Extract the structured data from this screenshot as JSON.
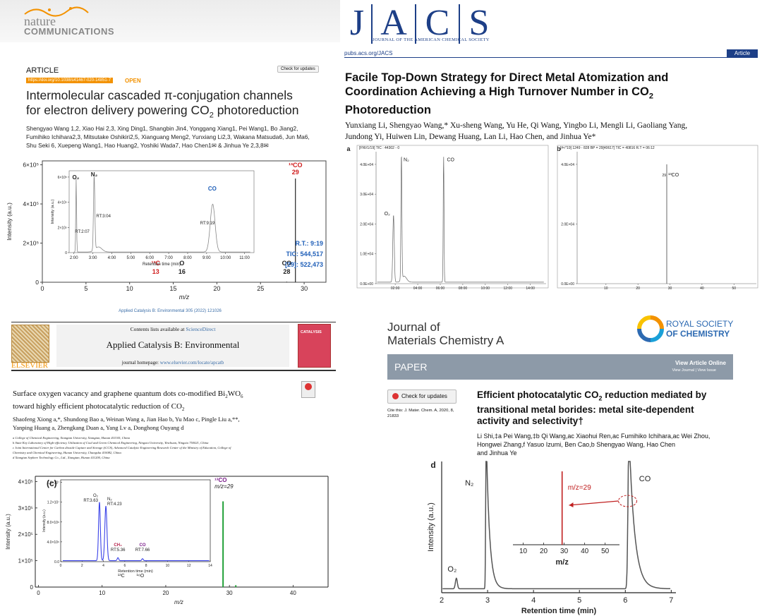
{
  "nc": {
    "logo_top": "nature",
    "logo_bottom": "COMMUNICATIONS",
    "section": "ARTICLE",
    "doi": "https://doi.org/10.1038/s41467-020-14851-7",
    "open": "OPEN",
    "check_updates": "Check for updates",
    "title_line1": "Intermolecular cascaded π-conjugation channels",
    "title_line2": "for electron delivery powering CO",
    "title_sub": "2",
    "title_end": " photoreduction",
    "authors_line1": "Shengyao Wang 1,2, Xiao Hai 2,3, Xing Ding1, Shangbin Jin4, Yonggang Xiang1, Pei Wang1, Bo Jiang2,",
    "authors_line2": "Fumihiko Ichihara2,3, Mitsutake Oshikiri2,5, Xianguang Meng2, Yunxiang Li2,3, Wakana Matsuda6, Jun Ma6,",
    "authors_line3": "Shu Seki 6, Xuepeng Wang1, Hao Huang2, Yoshiki Wada7, Hao Chen1✉ & Jinhua Ye 2,3,8✉",
    "chart": {
      "y_ticks": [
        "6×10⁵",
        "4×10⁵",
        "2×10⁵",
        "0"
      ],
      "x_ticks": [
        "0",
        "5",
        "10",
        "15",
        "20",
        "25",
        "30"
      ],
      "ylabel": "Intensity (a.u.)",
      "xlabel": "m/z",
      "peak_13co": "¹³CO",
      "peak_13co_mz": "29",
      "peak_co": "CO",
      "peak_co_mz": "28",
      "peak_13c": "¹³C",
      "peak_13c_mz": "13",
      "peak_o": "O",
      "peak_o_mz": "16",
      "rt": "R.T.: 9:19",
      "tic": "TIC: 544,517",
      "ion": "[29]: 522,473",
      "inset_y_ticks": [
        "6×10⁵",
        "4×10⁵",
        "2×10⁵",
        "0"
      ],
      "inset_x_ticks": [
        "2:00",
        "3:00",
        "4:00",
        "5:00",
        "6:00",
        "7:00",
        "8:00",
        "9:00",
        "10:00",
        "11:00"
      ],
      "inset_ylabel": "Intensity (a.u.)",
      "inset_xlabel": "Retention time (min)",
      "o2": "O₂",
      "n2": "N₂",
      "co": "CO",
      "rt_o2": "RT:2:07",
      "rt_n2": "RT:3:04",
      "rt_co": "RT:9:19"
    }
  },
  "jacs": {
    "logo": [
      "J",
      "A",
      "C",
      "S"
    ],
    "logo_sub": "JOURNAL OF THE AMERICAN CHEMICAL SOCIETY",
    "url": "pubs.acs.org/JACS",
    "type": "Article",
    "title_line1": "Facile Top-Down Strategy for Direct Metal Atomization and",
    "title_line2": "Coordination Achieving a High Turnover Number in CO",
    "title_sub": "2",
    "title_line3": "Photoreduction",
    "authors_line1": "Yunxiang Li, Shengyao Wang,* Xu-sheng Wang, Yu He, Qi Wang, Yingbo Li, Mengli Li, Gaoliang Yang,",
    "authors_line2": "Jundong Yi, Huiwen Lin, Dewang Huang, Lan Li, Hao Chen, and Jinhua Ye*",
    "panel_a": "a",
    "panel_b": "b",
    "a_header": "[FNV1/19] TIC : 44302 - 0",
    "a_y_ticks": [
      "4.0E+04",
      "3.0E+04",
      "2.0E+04",
      "1.0E+04",
      "0.0E+00"
    ],
    "a_x_ticks": [
      "02:00",
      "04:00",
      "06:00",
      "08:00",
      "10:00",
      "12:00",
      "14:00"
    ],
    "a_o2": "O₂",
    "a_n2": "N₂",
    "a_co": "CO",
    "b_header": "[#<*19] 1249 - 828 BP = 29[40617] TIC = 40816 R.T = 06:12",
    "b_y_ticks": [
      "4.0E+04",
      "2.0E+04",
      "0.0E+00"
    ],
    "b_x_ticks": [
      "10",
      "20",
      "30",
      "40",
      "50"
    ],
    "b_13co": "¹³CO",
    "b_29": "29"
  },
  "acb": {
    "header": "Applied Catalysis B: Environmental 305 (2022) 121026",
    "contents": "Contents lists available at ",
    "sciencedirect": "ScienceDirect",
    "journal": "Applied Catalysis B: Environmental",
    "homepage": "journal homepage: ",
    "homepage_url": "www.elsevier.com/locate/apcatb",
    "publisher": "ELSEVIER",
    "cover": "CATALYSIS",
    "check": "Check for updates",
    "title_line1": "Surface oxygen vacancy and graphene quantum dots co-modified Bi",
    "title_line1_sub": "2",
    "title_line1_end": "WO",
    "title_line1_sub2": "6",
    "title_line2": "toward highly efficient photocatalytic reduction of CO",
    "title_line2_sub": "2",
    "authors_line1": "Shaofeng Xiong a,*, Shundong Bao a, Weinan Wang a, Jian Hao b, Yu Mao c, Pingle Liu a,**,",
    "authors_line2": "Yanping Huang a, Zhengkang Duan a, Yang Lv a, Donghong Ouyang d",
    "aff1": "a College of Chemical Engineering, Xiangtan University, Xiangtan, Hunan 411105, China",
    "aff2": "b State Key Laboratory of High-efficiency Utilization of Coal and Green Chemical Engineering, Ningxia University, Yinchuan, Ningxia 750021, China",
    "aff3": "c Joint International Center for Carbon dioxide Capture and Storage (iCCS), Advanced Catalytic Engineering Research Center of the Ministry of Education, College of",
    "aff3b": "Chemistry and Chemical Engineering, Hunan University, Changsha 410082, China",
    "aff4": "d Xiangtan Sephere Technology Co., Ltd., Xiangtan, Hunan 411200, China",
    "chart": {
      "panel": "(c)",
      "y_ticks": [
        "4×10⁵",
        "3×10⁵",
        "2×10⁵",
        "1×10⁵",
        "0"
      ],
      "x_ticks": [
        "0",
        "10",
        "20",
        "30",
        "40"
      ],
      "ylabel": "Intensity (a.u.)",
      "xlabel": "m/z",
      "peak_13co": "¹³CO",
      "peak_mz": "m/z=29",
      "label_13c": "¹³C",
      "label_16o": "¹⁶O",
      "inset_y_ticks": [
        "1.6×10⁷",
        "1.2×10⁷",
        "8.0×10⁶",
        "4.0×10⁶",
        "0.0"
      ],
      "inset_x_ticks": [
        "0",
        "2",
        "4",
        "6",
        "8",
        "10",
        "12",
        "14"
      ],
      "inset_ylabel": "Intensity (a.u.)",
      "inset_xlabel": "Retention time (min)",
      "o2": "O₂",
      "rt_o2": "RT:3.63",
      "n2": "N₂",
      "rt_n2": "RT:4.23",
      "ch4": "CH₄",
      "rt_ch4": "RT:5.36",
      "co": "CO",
      "rt_co": "RT:7.66"
    }
  },
  "jmca": {
    "journal_line1": "Journal of",
    "journal_line2": "Materials Chemistry A",
    "rsc_line1": "ROYAL SOCIETY",
    "rsc_line2": "OF CHEMISTRY",
    "banner": "PAPER",
    "view_online": "View Article Online",
    "view_issue": "View Journal | View Issue",
    "check": "Check for updates",
    "cite": "Cite this: J. Mater. Chem. A, 2020, 8,",
    "cite2": "21833",
    "title_line1": "Efficient photocatalytic CO",
    "title_sub": "2",
    "title_line1_end": " reduction mediated by",
    "title_line2": "transitional metal borides: metal site-dependent",
    "title_line3": "activity and selectivity†",
    "authors_line1": "Li Shi,‡a Pei Wang,‡b Qi Wang,ac Xiaohui Ren,ac Fumihiko Ichihara,ac Wei Zhou,",
    "authors_line2": "Hongwei Zhang,f Yasuo Izumi, Ben Cao,b Shengyao Wang, Hao Chen",
    "authors_line3": "and Jinhua Ye",
    "chart": {
      "panel": "d",
      "ylabel": "Intensity (a.u.)",
      "xlabel": "Retention time (min)",
      "x_ticks": [
        "2",
        "3",
        "4",
        "5",
        "6",
        "7"
      ],
      "n2": "N₂",
      "co": "CO",
      "o2": "O₂",
      "inset_label": "m/z=29",
      "inset_x_ticks": [
        "10",
        "20",
        "30",
        "40",
        "50"
      ],
      "inset_xlabel": "m/z"
    }
  },
  "colors": {
    "nc_orange": "#f39200",
    "jacs_blue": "#1d3f87",
    "chart_blue": "#1f5fb8",
    "chart_red": "#d01c1c",
    "acb_green": "#22a038",
    "acb_blue": "#3b43e8",
    "rsc_banner": "#8d9aa8"
  }
}
